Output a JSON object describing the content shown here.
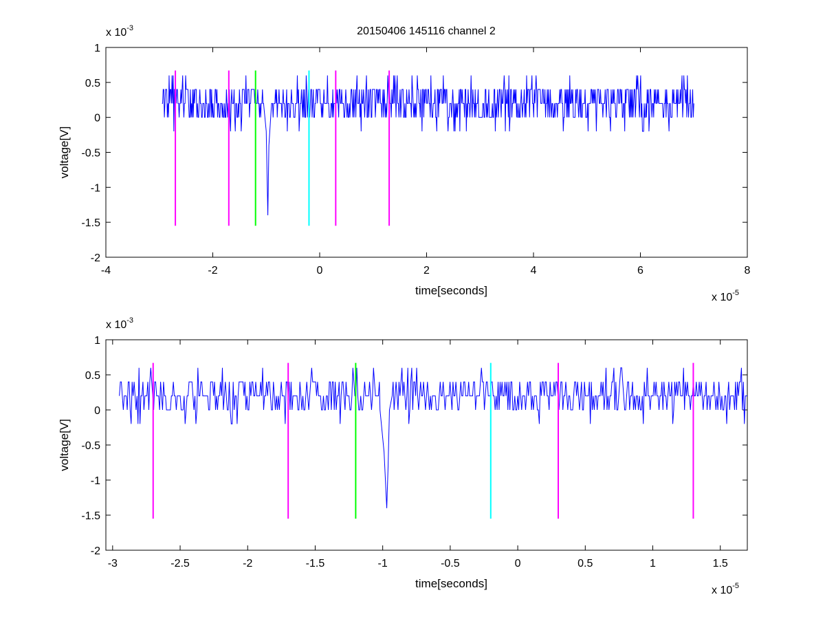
{
  "chart_data": [
    {
      "type": "line",
      "title": "20150406 145116 channel 2",
      "xlabel": "time[seconds]",
      "ylabel": "voltage[V]",
      "x_multiplier": {
        "base": "x 10",
        "exp": "-5"
      },
      "y_multiplier": {
        "base": "x 10",
        "exp": "-3"
      },
      "xlim": [
        -4,
        8
      ],
      "ylim": [
        -2,
        1
      ],
      "x_ticks": [
        -4,
        -2,
        0,
        2,
        4,
        6,
        8
      ],
      "x_tick_labels": [
        "-4",
        "-2",
        "0",
        "2",
        "4",
        "6",
        "8"
      ],
      "y_ticks": [
        -2,
        -1.5,
        -1,
        -0.5,
        0,
        0.5,
        1
      ],
      "y_tick_labels": [
        "-2",
        "-1.5",
        "-1",
        "-0.5",
        "0",
        "0.5",
        "1"
      ],
      "grid": false,
      "series": [
        {
          "color": "#0000ff",
          "signal": {
            "x_start": -2.95,
            "x_end": 7.0,
            "baseline": 0.2,
            "levels": [
              0,
              0.2,
              0.4
            ],
            "spike": {
              "x": [
                -1.05,
                -1.0,
                -0.97,
                -0.95,
                -0.9
              ],
              "y": [
                0.2,
                -0.2,
                -1.4,
                -0.4,
                0.2
              ]
            },
            "y_min_noise": -0.2,
            "y_max_noise": 0.6
          }
        }
      ],
      "markers": [
        {
          "x": -2.7,
          "color": "#ff00ff",
          "y_range": [
            -1.55,
            0.67
          ]
        },
        {
          "x": -1.7,
          "color": "#ff00ff",
          "y_range": [
            -1.55,
            0.67
          ]
        },
        {
          "x": -1.2,
          "color": "#00ff00",
          "y_range": [
            -1.55,
            0.67
          ]
        },
        {
          "x": -0.2,
          "color": "#00ffff",
          "y_range": [
            -1.55,
            0.67
          ]
        },
        {
          "x": 0.3,
          "color": "#ff00ff",
          "y_range": [
            -1.55,
            0.67
          ]
        },
        {
          "x": 1.3,
          "color": "#ff00ff",
          "y_range": [
            -1.55,
            0.67
          ]
        }
      ]
    },
    {
      "type": "line",
      "title": "",
      "xlabel": "time[seconds]",
      "ylabel": "voltage[V]",
      "x_multiplier": {
        "base": "x 10",
        "exp": "-5"
      },
      "y_multiplier": {
        "base": "x 10",
        "exp": "-3"
      },
      "xlim": [
        -3.05,
        1.7
      ],
      "ylim": [
        -2,
        1
      ],
      "x_ticks": [
        -3,
        -2.5,
        -2,
        -1.5,
        -1,
        -0.5,
        0,
        0.5,
        1,
        1.5
      ],
      "x_tick_labels": [
        "-3",
        "-2.5",
        "-2",
        "-1.5",
        "-1",
        "-0.5",
        "0",
        "0.5",
        "1",
        "1.5"
      ],
      "y_ticks": [
        -2,
        -1.5,
        -1,
        -0.5,
        0,
        0.5,
        1
      ],
      "y_tick_labels": [
        "-2",
        "-1.5",
        "-1",
        "-0.5",
        "0",
        "0.5",
        "1"
      ],
      "grid": false,
      "series": [
        {
          "color": "#0000ff",
          "signal": {
            "x_start": -2.95,
            "x_end": 1.7,
            "baseline": 0.2,
            "levels": [
              0,
              0.2,
              0.4
            ],
            "spike": {
              "x": [
                -1.02,
                -0.99,
                -0.97,
                -0.96,
                -0.95,
                -0.93
              ],
              "y": [
                0.0,
                -0.6,
                -1.4,
                -0.8,
                0.0,
                0.2
              ]
            },
            "y_min_noise": -0.2,
            "y_max_noise": 0.6
          }
        }
      ],
      "markers": [
        {
          "x": -2.7,
          "color": "#ff00ff",
          "y_range": [
            -1.55,
            0.67
          ]
        },
        {
          "x": -1.7,
          "color": "#ff00ff",
          "y_range": [
            -1.55,
            0.67
          ]
        },
        {
          "x": -1.2,
          "color": "#00ff00",
          "y_range": [
            -1.55,
            0.67
          ]
        },
        {
          "x": -0.2,
          "color": "#00ffff",
          "y_range": [
            -1.55,
            0.67
          ]
        },
        {
          "x": 0.3,
          "color": "#ff00ff",
          "y_range": [
            -1.55,
            0.67
          ]
        },
        {
          "x": 1.3,
          "color": "#ff00ff",
          "y_range": [
            -1.55,
            0.67
          ]
        }
      ]
    }
  ]
}
